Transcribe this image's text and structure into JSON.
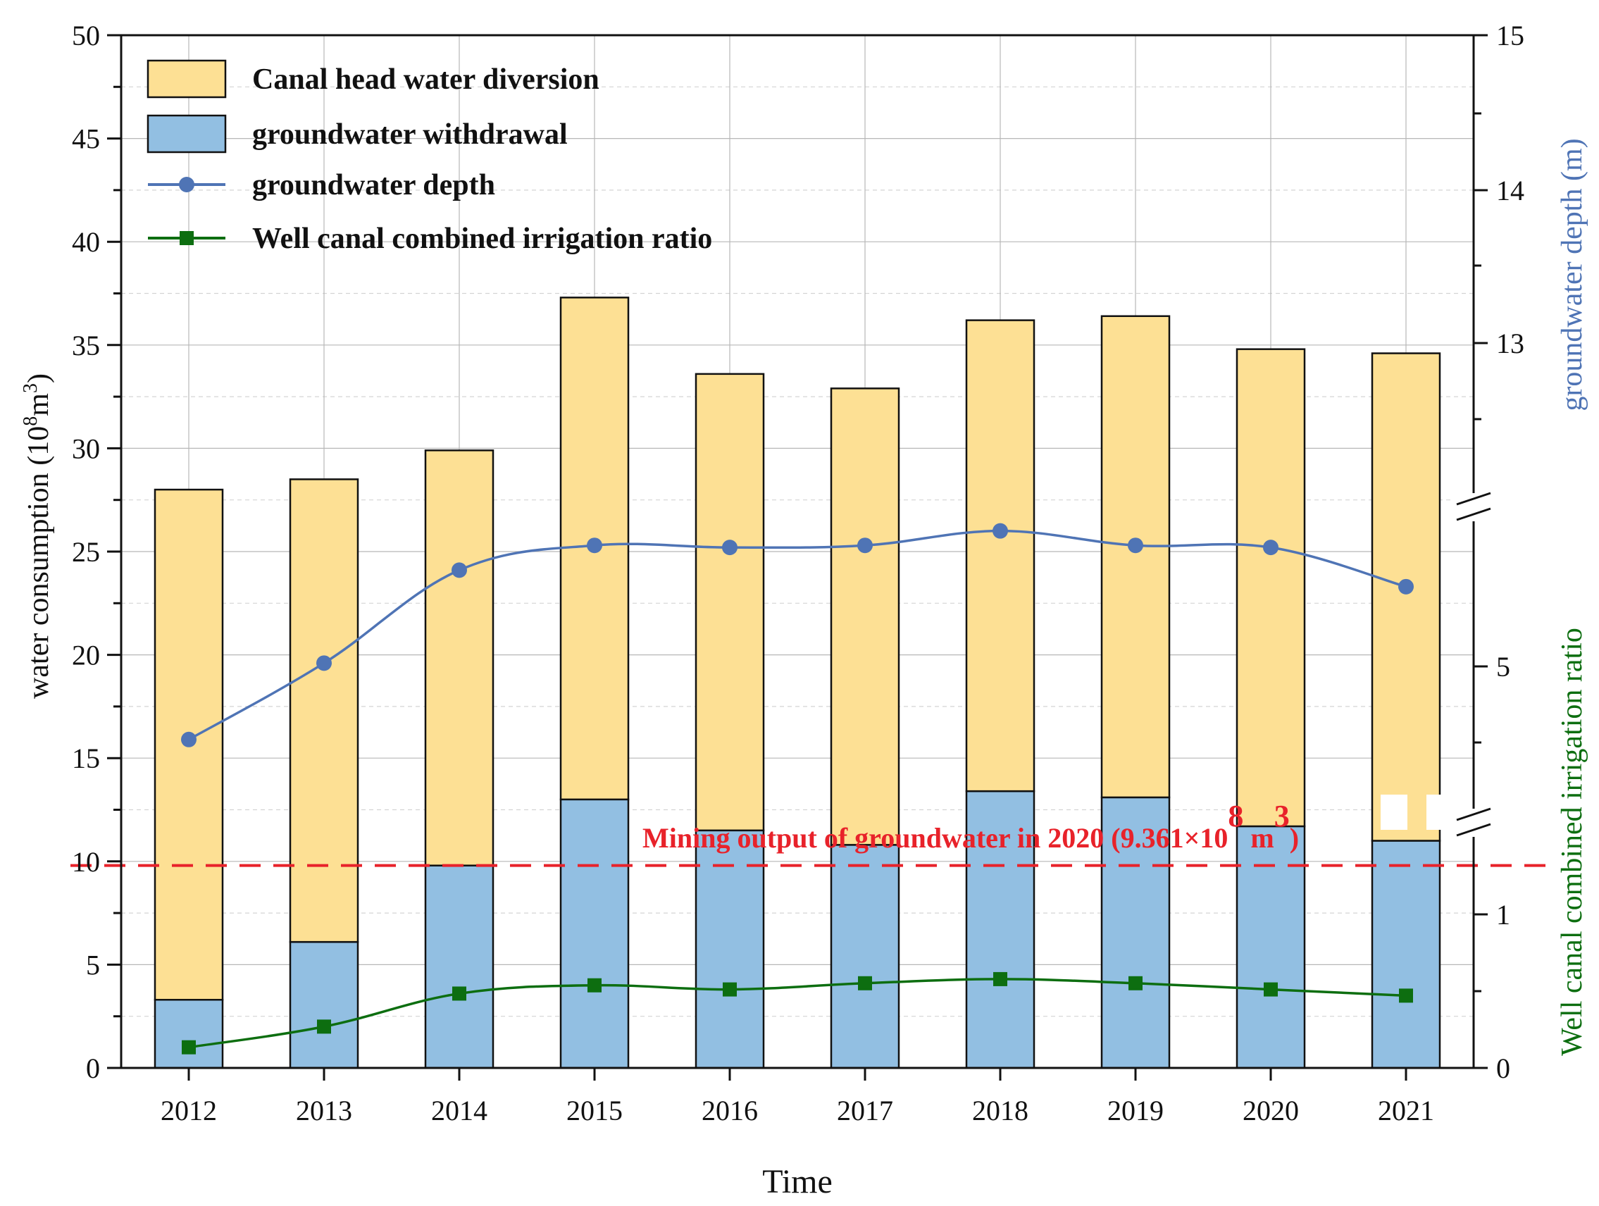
{
  "chart_data": {
    "type": "bar",
    "x_title": "Time",
    "categories": [
      "2012",
      "2013",
      "2014",
      "2015",
      "2016",
      "2017",
      "2018",
      "2019",
      "2020",
      "2021"
    ],
    "left_axis": {
      "label_main": "water consumption (10",
      "label_sup": "8",
      "label_mid": "m",
      "label_sup2": "3",
      "label_end": ")",
      "ylim": [
        0,
        50
      ],
      "ticks": [
        0,
        5,
        10,
        15,
        20,
        25,
        30,
        35,
        40,
        45,
        50
      ]
    },
    "right_axis_upper": {
      "label": "groundwater depth (m)",
      "tick_labels": [
        "13",
        "14",
        "15"
      ]
    },
    "right_axis_lower": {
      "label": "Well canal combined irrigation ratio",
      "tick_labels": [
        "0",
        "1",
        "5"
      ]
    },
    "stacked_series": [
      {
        "name": "groundwater withdrawal",
        "color": "#92bfe2",
        "values": [
          3.3,
          6.1,
          9.8,
          13.0,
          11.5,
          10.8,
          13.4,
          13.1,
          11.7,
          11.0
        ]
      },
      {
        "name": "Canal head water diversion",
        "color": "#fde094",
        "values": [
          24.7,
          22.4,
          20.1,
          24.3,
          22.1,
          22.1,
          22.8,
          23.3,
          23.1,
          23.6
        ]
      }
    ],
    "line_series": [
      {
        "name": "groundwater depth",
        "color": "#4f74b5",
        "marker": "circle",
        "plot_values": [
          15.9,
          19.6,
          24.1,
          25.3,
          25.2,
          25.3,
          26.0,
          25.3,
          25.2,
          23.3
        ]
      },
      {
        "name": "Well canal combined irrigation ratio",
        "color": "#0d6e10",
        "marker": "square",
        "plot_values": [
          1.0,
          2.0,
          3.6,
          4.0,
          3.8,
          4.1,
          4.3,
          4.1,
          3.8,
          3.5
        ]
      }
    ],
    "reference_line": {
      "value": 9.8,
      "color": "#e8222a",
      "label": "Mining output of groundwater in 2020 (9.361×10",
      "label_sup": "8",
      "label_mid": " m",
      "label_sup2": "3",
      "label_end": ")"
    },
    "legend": [
      {
        "name": "Canal head water diversion",
        "kind": "bar"
      },
      {
        "name": "groundwater withdrawal",
        "kind": "bar"
      },
      {
        "name": "groundwater depth",
        "kind": "line-circle"
      },
      {
        "name": "Well canal combined irrigation ratio",
        "kind": "line-square"
      }
    ]
  }
}
